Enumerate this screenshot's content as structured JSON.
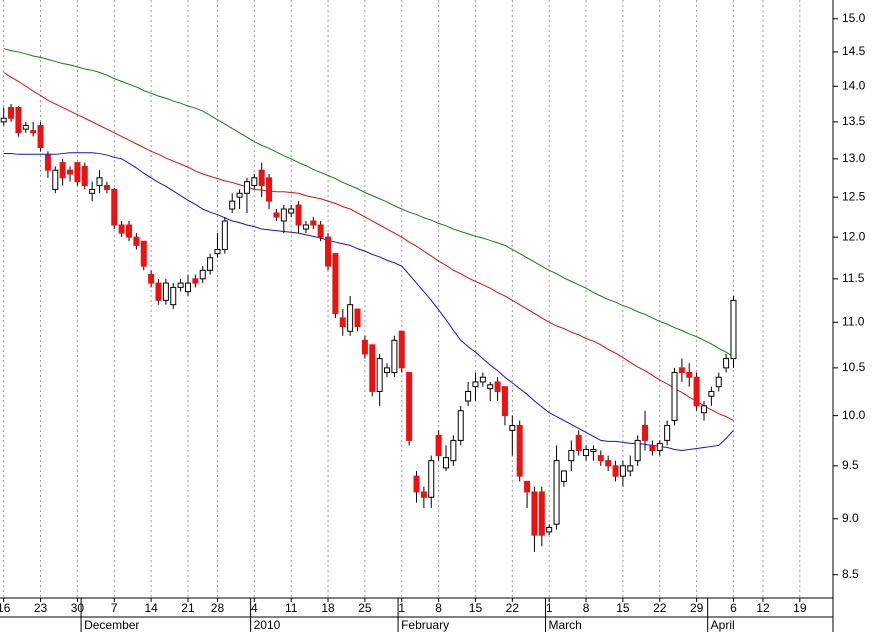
{
  "chart_data": {
    "type": "candlestick",
    "categories": [
      "16",
      null,
      null,
      null,
      null,
      "23",
      null,
      null,
      null,
      null,
      "30",
      null,
      null,
      null,
      null,
      "7",
      null,
      null,
      null,
      null,
      "14",
      null,
      null,
      null,
      null,
      "21",
      null,
      null,
      null,
      "28",
      null,
      null,
      null,
      null,
      "4",
      null,
      null,
      null,
      null,
      "11",
      null,
      null,
      null,
      null,
      "18",
      null,
      null,
      null,
      null,
      "25",
      null,
      null,
      null,
      null,
      "1",
      null,
      null,
      null,
      null,
      "8",
      null,
      null,
      null,
      null,
      "15",
      null,
      null,
      null,
      null,
      "22",
      null,
      null,
      null,
      null,
      "1",
      null,
      null,
      null,
      null,
      "8",
      null,
      null,
      null,
      null,
      "15",
      null,
      null,
      null,
      null,
      "22",
      null,
      null,
      null,
      null,
      "29",
      null,
      null,
      null,
      null,
      "6",
      null,
      null,
      null,
      "12",
      null,
      null,
      null,
      null,
      "19",
      null,
      null,
      null,
      null
    ],
    "months": [
      null,
      null,
      null,
      null,
      null,
      null,
      null,
      null,
      null,
      null,
      null,
      "December",
      null,
      null,
      null,
      null,
      null,
      null,
      null,
      null,
      null,
      null,
      null,
      null,
      null,
      null,
      null,
      null,
      null,
      null,
      null,
      null,
      null,
      null,
      "2010",
      null,
      null,
      null,
      null,
      null,
      null,
      null,
      null,
      null,
      null,
      null,
      null,
      null,
      null,
      null,
      null,
      null,
      null,
      null,
      "February",
      null,
      null,
      null,
      null,
      null,
      null,
      null,
      null,
      null,
      null,
      null,
      null,
      null,
      null,
      null,
      null,
      null,
      null,
      null,
      "March",
      null,
      null,
      null,
      null,
      null,
      null,
      null,
      null,
      null,
      null,
      null,
      null,
      null,
      null,
      null,
      null,
      null,
      null,
      null,
      null,
      null,
      "April",
      null,
      null,
      null,
      null,
      null,
      null,
      null,
      null,
      null,
      null,
      null,
      null,
      null,
      null,
      null
    ],
    "ohlc": {
      "open": [
        13.5,
        13.7,
        13.7,
        13.4,
        13.38,
        13.45,
        13.05,
        12.6,
        12.95,
        12.85,
        12.95,
        12.9,
        12.55,
        12.65,
        12.65,
        12.6,
        12.15,
        12.15,
        12.0,
        11.95,
        11.55,
        11.45,
        11.25,
        11.2,
        11.4,
        11.35,
        11.5,
        11.5,
        11.6,
        11.8,
        11.85,
        12.35,
        12.5,
        12.55,
        12.65,
        12.85,
        12.75,
        12.3,
        12.2,
        12.3,
        12.4,
        12.1,
        12.2,
        12.15,
        12.0,
        11.8,
        11.05,
        10.9,
        11.15,
        10.8,
        10.75,
        10.25,
        10.45,
        10.45,
        10.9,
        10.45,
        9.4,
        9.25,
        9.2,
        9.8,
        9.48,
        9.55,
        9.75,
        10.15,
        10.3,
        10.35,
        10.28,
        10.35,
        10.3,
        9.85,
        9.9,
        9.35,
        9.25,
        9.25,
        8.88,
        8.95,
        9.35,
        9.55,
        9.8,
        9.6,
        9.64,
        9.6,
        9.55,
        9.5,
        9.4,
        9.45,
        9.55,
        9.9,
        9.7,
        9.65,
        9.75,
        9.95,
        10.5,
        10.45,
        10.4,
        10.03,
        10.2,
        10.3,
        10.5,
        10.6,
        null,
        null,
        null,
        null,
        null,
        null,
        null,
        null,
        null,
        null,
        null,
        null,
        null
      ],
      "high": [
        13.7,
        13.75,
        13.72,
        13.5,
        13.5,
        13.5,
        13.1,
        12.9,
        13.0,
        12.9,
        12.95,
        12.95,
        12.7,
        12.85,
        12.7,
        12.62,
        12.2,
        12.2,
        12.05,
        11.95,
        11.6,
        11.5,
        11.5,
        11.45,
        11.5,
        11.55,
        11.55,
        11.65,
        11.8,
        12.05,
        12.25,
        12.55,
        12.6,
        12.75,
        12.8,
        12.95,
        12.8,
        12.35,
        12.4,
        12.4,
        12.45,
        12.2,
        12.25,
        12.2,
        12.05,
        11.8,
        11.15,
        11.3,
        11.15,
        10.85,
        10.75,
        10.65,
        10.55,
        10.85,
        10.9,
        10.45,
        9.45,
        9.3,
        9.6,
        9.85,
        9.7,
        9.8,
        10.1,
        10.35,
        10.45,
        10.45,
        10.35,
        10.4,
        10.3,
        10.0,
        9.95,
        9.35,
        9.3,
        9.3,
        8.95,
        9.7,
        9.45,
        9.75,
        9.85,
        9.7,
        9.7,
        9.65,
        9.6,
        9.55,
        9.55,
        9.6,
        9.8,
        10.05,
        9.75,
        9.75,
        9.95,
        10.5,
        10.6,
        10.55,
        10.45,
        10.15,
        10.3,
        10.45,
        10.65,
        11.3,
        null,
        null,
        null,
        null,
        null,
        null,
        null,
        null,
        null,
        null,
        null,
        null,
        null
      ],
      "low": [
        13.45,
        13.5,
        13.3,
        13.35,
        13.3,
        13.1,
        12.75,
        12.55,
        12.65,
        12.7,
        12.65,
        12.6,
        12.45,
        12.55,
        12.55,
        12.1,
        12.0,
        11.95,
        11.85,
        11.6,
        11.4,
        11.2,
        11.2,
        11.15,
        11.35,
        11.3,
        11.4,
        11.45,
        11.55,
        11.75,
        11.8,
        12.3,
        12.35,
        12.3,
        12.6,
        12.5,
        12.35,
        12.2,
        12.05,
        12.25,
        12.05,
        12.05,
        12.1,
        11.95,
        11.6,
        11.05,
        10.85,
        10.85,
        10.9,
        10.6,
        10.2,
        10.1,
        10.4,
        10.4,
        10.45,
        9.7,
        9.15,
        9.1,
        9.1,
        9.55,
        9.45,
        9.5,
        9.7,
        10.1,
        10.15,
        10.3,
        10.15,
        10.15,
        9.9,
        9.6,
        9.35,
        9.1,
        8.7,
        8.75,
        8.85,
        8.9,
        9.3,
        9.45,
        9.6,
        9.55,
        9.55,
        9.5,
        9.45,
        9.35,
        9.3,
        9.4,
        9.5,
        9.65,
        9.6,
        9.6,
        9.7,
        9.9,
        10.35,
        10.3,
        10.05,
        9.95,
        10.1,
        10.25,
        10.45,
        10.5,
        null,
        null,
        null,
        null,
        null,
        null,
        null,
        null,
        null,
        null,
        null,
        null,
        null
      ],
      "close": [
        13.55,
        13.55,
        13.35,
        13.45,
        13.35,
        13.15,
        12.85,
        12.85,
        12.75,
        12.8,
        12.7,
        12.65,
        12.6,
        12.75,
        12.6,
        12.15,
        12.05,
        12.0,
        11.9,
        11.65,
        11.45,
        11.25,
        11.45,
        11.4,
        11.45,
        11.45,
        11.45,
        11.6,
        11.75,
        11.85,
        12.2,
        12.45,
        12.55,
        12.7,
        12.75,
        12.65,
        12.45,
        12.25,
        12.35,
        12.35,
        12.15,
        12.15,
        12.15,
        12.0,
        11.65,
        11.1,
        10.95,
        11.2,
        10.95,
        10.65,
        10.25,
        10.6,
        10.5,
        10.8,
        10.5,
        9.75,
        9.25,
        9.2,
        9.55,
        9.6,
        9.58,
        9.75,
        10.05,
        10.25,
        10.35,
        10.4,
        10.32,
        10.25,
        10.0,
        9.9,
        9.4,
        9.25,
        8.85,
        8.85,
        8.92,
        9.55,
        9.45,
        9.65,
        9.65,
        9.66,
        9.66,
        9.55,
        9.5,
        9.4,
        9.5,
        9.5,
        9.75,
        9.75,
        9.65,
        9.72,
        9.9,
        10.45,
        10.45,
        10.4,
        10.1,
        10.1,
        10.25,
        10.4,
        10.6,
        11.25,
        null,
        null,
        null,
        null,
        null,
        null,
        null,
        null,
        null,
        null,
        null,
        null,
        null
      ]
    },
    "colors": {
      "up": "#ffffff",
      "down": "#ee1111",
      "outline": "#000000"
    },
    "lines": [
      {
        "color": "#1010e0",
        "values": [
          13.07,
          13.07,
          13.06,
          13.06,
          13.06,
          13.06,
          13.06,
          13.06,
          13.07,
          13.08,
          13.08,
          13.08,
          13.08,
          13.07,
          13.05,
          13.02,
          13.0,
          12.94,
          12.88,
          12.81,
          12.75,
          12.69,
          12.64,
          12.58,
          12.52,
          12.46,
          12.41,
          12.35,
          12.31,
          12.28,
          12.24,
          12.2,
          12.18,
          12.15,
          12.13,
          12.1,
          12.09,
          12.08,
          12.07,
          12.06,
          12.05,
          12.03,
          12.01,
          11.99,
          11.96,
          11.94,
          11.92,
          11.9,
          11.86,
          11.83,
          11.79,
          11.76,
          11.72,
          11.69,
          11.65,
          11.55,
          11.45,
          11.35,
          11.25,
          11.14,
          11.03,
          10.91,
          10.8,
          10.73,
          10.67,
          10.6,
          10.53,
          10.47,
          10.4,
          10.34,
          10.28,
          10.22,
          10.15,
          10.09,
          10.03,
          9.99,
          9.95,
          9.91,
          9.87,
          9.83,
          9.79,
          9.75,
          9.74,
          9.74,
          9.73,
          9.72,
          9.72,
          9.71,
          9.7,
          9.69,
          9.68,
          9.66,
          9.65,
          9.66,
          9.67,
          9.68,
          9.69,
          9.7,
          9.77,
          9.85,
          null,
          null,
          null,
          null,
          null,
          null,
          null,
          null,
          null,
          null,
          null,
          null,
          null
        ]
      },
      {
        "color": "#e01010",
        "values": [
          14.2,
          14.13,
          14.07,
          14.0,
          13.93,
          13.87,
          13.8,
          13.75,
          13.7,
          13.65,
          13.6,
          13.55,
          13.5,
          13.45,
          13.4,
          13.35,
          13.3,
          13.25,
          13.2,
          13.15,
          13.1,
          13.06,
          13.01,
          12.97,
          12.93,
          12.89,
          12.84,
          12.8,
          12.77,
          12.74,
          12.71,
          12.69,
          12.66,
          12.63,
          12.6,
          12.59,
          12.58,
          12.57,
          12.57,
          12.56,
          12.55,
          12.52,
          12.5,
          12.48,
          12.45,
          12.42,
          12.38,
          12.35,
          12.3,
          12.25,
          12.2,
          12.15,
          12.1,
          12.05,
          12.0,
          11.94,
          11.89,
          11.83,
          11.77,
          11.71,
          11.66,
          11.6,
          11.56,
          11.51,
          11.47,
          11.43,
          11.39,
          11.34,
          11.3,
          11.25,
          11.2,
          11.15,
          11.1,
          11.05,
          11.0,
          10.96,
          10.93,
          10.89,
          10.86,
          10.82,
          10.79,
          10.75,
          10.7,
          10.66,
          10.61,
          10.56,
          10.51,
          10.47,
          10.42,
          10.37,
          10.33,
          10.28,
          10.24,
          10.19,
          10.15,
          10.1,
          10.06,
          10.02,
          9.99,
          9.95,
          null,
          null,
          null,
          null,
          null,
          null,
          null,
          null,
          null,
          null,
          null,
          null,
          null
        ]
      },
      {
        "color": "#108010",
        "values": [
          14.55,
          14.52,
          14.5,
          14.47,
          14.44,
          14.42,
          14.39,
          14.36,
          14.33,
          14.31,
          14.28,
          14.25,
          14.23,
          14.2,
          14.16,
          14.11,
          14.07,
          14.03,
          13.99,
          13.94,
          13.9,
          13.86,
          13.83,
          13.79,
          13.76,
          13.72,
          13.69,
          13.65,
          13.59,
          13.53,
          13.47,
          13.41,
          13.35,
          13.29,
          13.23,
          13.18,
          13.14,
          13.09,
          13.04,
          13.0,
          12.95,
          12.91,
          12.86,
          12.82,
          12.78,
          12.74,
          12.69,
          12.65,
          12.61,
          12.56,
          12.52,
          12.48,
          12.44,
          12.39,
          12.35,
          12.31,
          12.28,
          12.24,
          12.21,
          12.17,
          12.14,
          12.1,
          12.07,
          12.04,
          12.01,
          11.99,
          11.96,
          11.93,
          11.9,
          11.85,
          11.8,
          11.75,
          11.7,
          11.65,
          11.6,
          11.56,
          11.51,
          11.47,
          11.43,
          11.39,
          11.34,
          11.3,
          11.26,
          11.23,
          11.19,
          11.16,
          11.12,
          11.09,
          11.05,
          11.01,
          10.98,
          10.94,
          10.91,
          10.87,
          10.84,
          10.8,
          10.76,
          10.71,
          10.67,
          10.62,
          null,
          null,
          null,
          null,
          null,
          null,
          null,
          null,
          null,
          null,
          null,
          null,
          null
        ]
      }
    ],
    "ylim": [
      8.3,
      15.29
    ],
    "log_y": true,
    "yticks": [
      8.5,
      {
        "value": 9,
        "label": "9.0"
      },
      9.5,
      {
        "value": 10,
        "label": "10.0"
      },
      10.5,
      {
        "value": 11,
        "label": "11.0"
      },
      11.5,
      {
        "value": 12,
        "label": "12.0"
      },
      12.5,
      {
        "value": 13,
        "label": "13.0"
      },
      13.5,
      {
        "value": 14,
        "label": "14.0"
      },
      14.5,
      {
        "value": 15,
        "label": "15.0"
      }
    ],
    "x_grid": true
  }
}
